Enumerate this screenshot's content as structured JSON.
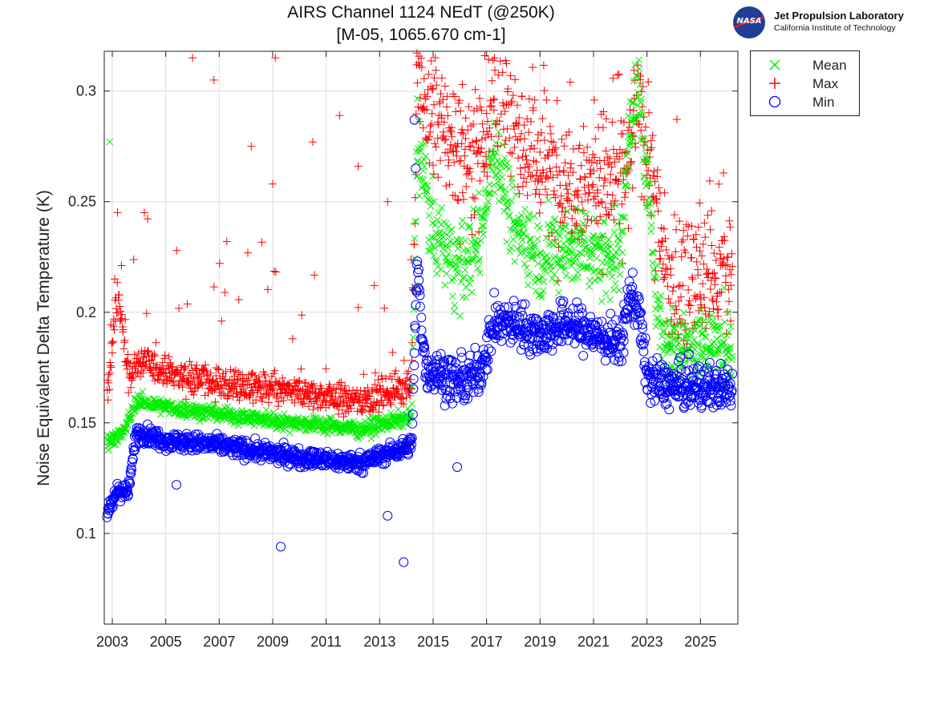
{
  "chart_data": {
    "type": "scatter",
    "title": "AIRS Channel 1124 NEdT (@250K)",
    "subtitle": "[M-05, 1065.670 cm-1]",
    "xlabel": "",
    "ylabel": "Noise Equivalent Delta Temperature (K)",
    "xlim": [
      2002.7,
      2026.4
    ],
    "ylim": [
      0.059,
      0.318
    ],
    "x_ticks": [
      "2003",
      "2005",
      "2007",
      "2009",
      "2011",
      "2013",
      "2015",
      "2017",
      "2019",
      "2021",
      "2023",
      "2025"
    ],
    "y_ticks": [
      "0.1",
      "0.15",
      "0.2",
      "0.25",
      "0.3"
    ],
    "grid": true,
    "legend_position": "top-right-outside",
    "series": [
      {
        "name": "Mean",
        "marker": "x",
        "color": "#00ee00",
        "trend": [
          [
            2002.8,
            0.142
          ],
          [
            2003.4,
            0.145
          ],
          [
            2003.9,
            0.16
          ],
          [
            2005,
            0.157
          ],
          [
            2007,
            0.154
          ],
          [
            2009,
            0.151
          ],
          [
            2011,
            0.149
          ],
          [
            2012.3,
            0.147
          ],
          [
            2014.2,
            0.153
          ],
          [
            2014.4,
            0.28
          ],
          [
            2015,
            0.235
          ],
          [
            2016,
            0.22
          ],
          [
            2016.7,
            0.23
          ],
          [
            2017.3,
            0.275
          ],
          [
            2018,
            0.24
          ],
          [
            2019,
            0.225
          ],
          [
            2020,
            0.23
          ],
          [
            2021,
            0.228
          ],
          [
            2022,
            0.225
          ],
          [
            2022.4,
            0.29
          ],
          [
            2022.7,
            0.3
          ],
          [
            2023.2,
            0.23
          ],
          [
            2023.6,
            0.186
          ],
          [
            2025,
            0.186
          ],
          [
            2026.2,
            0.186
          ]
        ],
        "notable_points": [
          [
            2002.9,
            0.277
          ]
        ]
      },
      {
        "name": "Max",
        "marker": "+",
        "color": "#ff0000",
        "trend": [
          [
            2002.8,
            0.16
          ],
          [
            2003.2,
            0.21
          ],
          [
            2003.6,
            0.17
          ],
          [
            2004,
            0.178
          ],
          [
            2005,
            0.173
          ],
          [
            2007,
            0.168
          ],
          [
            2009,
            0.165
          ],
          [
            2011,
            0.162
          ],
          [
            2012.3,
            0.16
          ],
          [
            2014.2,
            0.168
          ],
          [
            2014.4,
            0.3
          ],
          [
            2016,
            0.27
          ],
          [
            2016.7,
            0.275
          ],
          [
            2017.5,
            0.3
          ],
          [
            2018.5,
            0.275
          ],
          [
            2019.5,
            0.26
          ],
          [
            2021,
            0.26
          ],
          [
            2022.3,
            0.262
          ],
          [
            2022.7,
            0.3
          ],
          [
            2023.3,
            0.25
          ],
          [
            2023.8,
            0.21
          ],
          [
            2025,
            0.215
          ],
          [
            2026.2,
            0.215
          ]
        ],
        "notable_points": [
          [
            2006,
            0.315
          ],
          [
            2006.8,
            0.305
          ],
          [
            2009.1,
            0.315
          ],
          [
            2011.5,
            0.289
          ],
          [
            2008.2,
            0.275
          ],
          [
            2010.5,
            0.277
          ],
          [
            2012.2,
            0.266
          ],
          [
            2009,
            0.258
          ],
          [
            2004.2,
            0.245
          ],
          [
            2013.3,
            0.25
          ]
        ]
      },
      {
        "name": "Min",
        "marker": "o",
        "color": "#0000ff",
        "trend": [
          [
            2002.8,
            0.107
          ],
          [
            2003.2,
            0.12
          ],
          [
            2003.6,
            0.118
          ],
          [
            2003.9,
            0.146
          ],
          [
            2005,
            0.142
          ],
          [
            2007,
            0.14
          ],
          [
            2009,
            0.136
          ],
          [
            2011,
            0.133
          ],
          [
            2012.3,
            0.132
          ],
          [
            2014.2,
            0.14
          ],
          [
            2014.4,
            0.22
          ],
          [
            2014.7,
            0.175
          ],
          [
            2016,
            0.168
          ],
          [
            2016.7,
            0.172
          ],
          [
            2017.3,
            0.195
          ],
          [
            2018,
            0.195
          ],
          [
            2019,
            0.19
          ],
          [
            2020,
            0.195
          ],
          [
            2021,
            0.19
          ],
          [
            2022,
            0.185
          ],
          [
            2022.4,
            0.21
          ],
          [
            2022.7,
            0.2
          ],
          [
            2023,
            0.17
          ],
          [
            2024,
            0.166
          ],
          [
            2025,
            0.166
          ],
          [
            2026.2,
            0.166
          ]
        ],
        "notable_points": [
          [
            2005.4,
            0.122
          ],
          [
            2009.3,
            0.094
          ],
          [
            2013.3,
            0.108
          ],
          [
            2013.9,
            0.087
          ],
          [
            2015.9,
            0.13
          ],
          [
            2014.3,
            0.287
          ],
          [
            2014.35,
            0.265
          ]
        ]
      }
    ]
  },
  "logo": {
    "org_mark": "NASA",
    "name": "Jet Propulsion Laboratory",
    "subtitle": "California Institute of Technology"
  }
}
